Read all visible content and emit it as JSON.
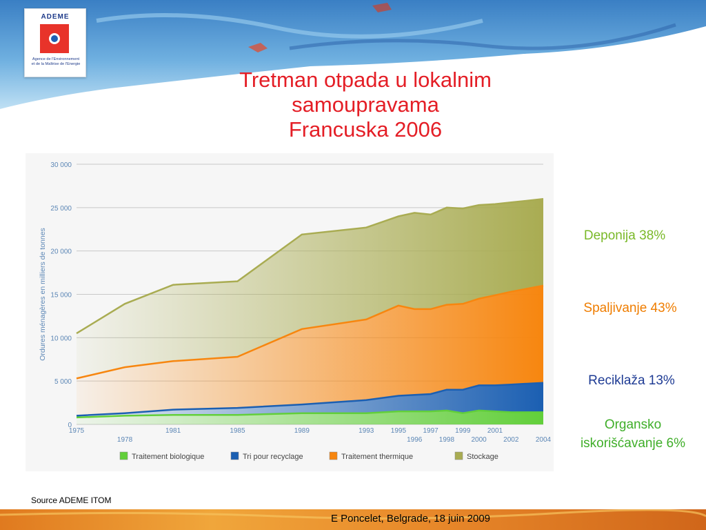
{
  "colors": {
    "title": "#e41e26",
    "stockage": "#a9ac52",
    "thermique": "#f7860f",
    "recyclage": "#1b5fb2",
    "biologique": "#62cf3a",
    "deponija_note": "#7ab929",
    "spaljivanje_note": "#ef7d00",
    "reciklaza_note": "#1e3b94",
    "organsko_note": "#3fae29"
  },
  "logo": {
    "name": "ADEME",
    "subtitle_1": "Agence de l'Environnement",
    "subtitle_2": "et de la Maîtrise de l'Energie"
  },
  "title_lines": [
    "Tretman otpada u lokalnim",
    "samoupravama",
    "Francuska 2006"
  ],
  "notes": {
    "deponija": "Deponija 38%",
    "spaljivanje": "Spaljivanje 43%",
    "reciklaza": "Reciklaža 13%",
    "organsko_1": "Organsko",
    "organsko_2": "iskorišćavanje 6%"
  },
  "source": "Source ADEME ITOM",
  "footer": "E Poncelet, Belgrade, 18 juin 2009",
  "chart_data": {
    "type": "area",
    "stacked": true,
    "ylabel": "Ordures ménagères en milliers de tonnes",
    "ylim": [
      0,
      30000
    ],
    "yticks": [
      0,
      5000,
      10000,
      15000,
      20000,
      25000,
      30000
    ],
    "ytick_labels": [
      "0",
      "5 000",
      "10 000",
      "15 000",
      "20 000",
      "25 000",
      "30 000"
    ],
    "grid": true,
    "x": [
      1975,
      1978,
      1981,
      1985,
      1989,
      1993,
      1995,
      1996,
      1997,
      1998,
      1999,
      2000,
      2001,
      2002,
      2004
    ],
    "xticks_top": [
      "1975",
      "1981",
      "1985",
      "1989",
      "1993",
      "1995",
      "1997",
      "1999",
      "2001"
    ],
    "xticks_bottom": [
      "1978",
      "1996",
      "1998",
      "2000",
      "2002",
      "2004"
    ],
    "series": [
      {
        "name": "Traitement biologique",
        "key": "biologique",
        "values": [
          800,
          1000,
          1100,
          1100,
          1300,
          1300,
          1500,
          1500,
          1500,
          1600,
          1300,
          1600,
          1500,
          1400,
          1400
        ]
      },
      {
        "name": "Tri pour recyclage",
        "key": "recyclage",
        "values": [
          200,
          300,
          600,
          800,
          1000,
          1500,
          1800,
          1900,
          2000,
          2400,
          2700,
          2900,
          3000,
          3200,
          3400
        ]
      },
      {
        "name": "Traitement thermique",
        "key": "thermique",
        "values": [
          4300,
          5300,
          5600,
          5900,
          8700,
          9300,
          10400,
          9900,
          9800,
          9800,
          9900,
          10000,
          10400,
          10700,
          11200
        ]
      },
      {
        "name": "Stockage",
        "key": "stockage",
        "values": [
          5200,
          7300,
          8800,
          8700,
          10900,
          10600,
          10300,
          11100,
          10900,
          11200,
          11000,
          10800,
          10500,
          10300,
          10000
        ]
      }
    ],
    "legend_position": "bottom"
  }
}
